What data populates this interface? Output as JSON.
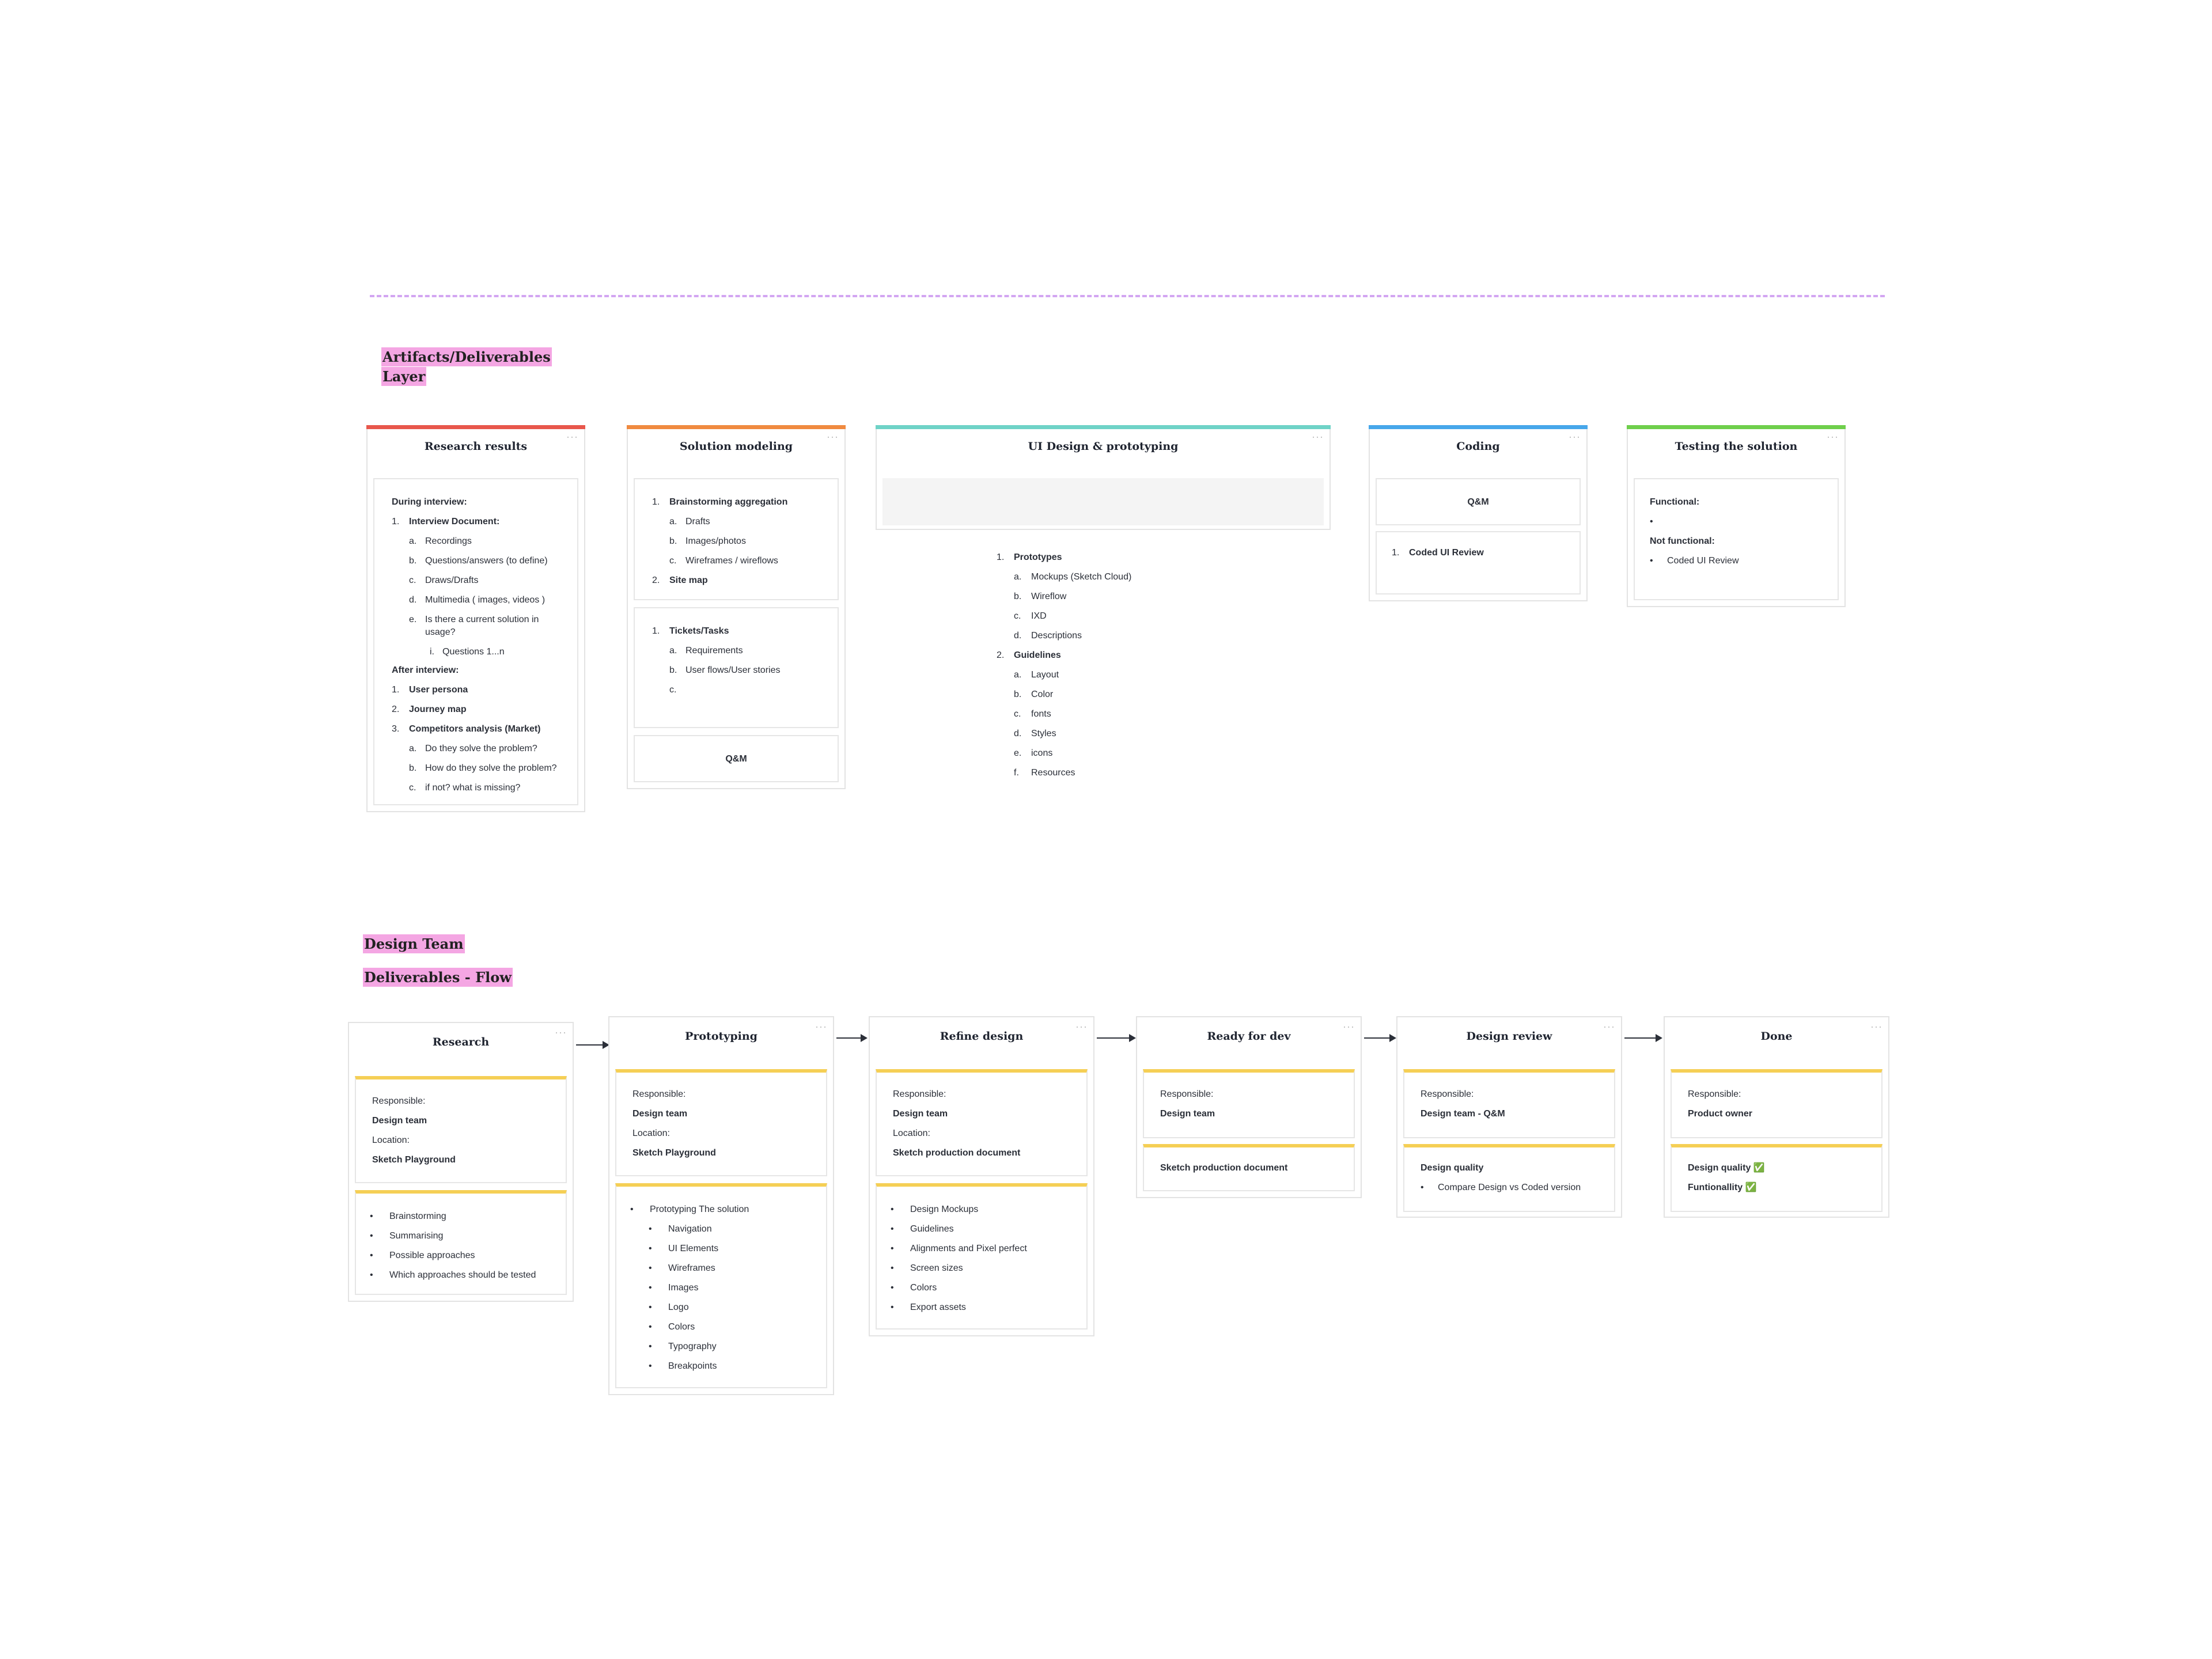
{
  "sections": {
    "artifacts_title_1": "Artifacts/Deliverables",
    "artifacts_title_2": "Layer",
    "design_team_title": "Design Team",
    "flow_title": "Deliverables - Flow"
  },
  "colors": {
    "research": "#e8574c",
    "solution": "#f08a40",
    "ui_design": "#6fd3c7",
    "coding": "#47a7ea",
    "testing": "#6fcf4c",
    "flow_accent": "#f5cf55",
    "highlight": "#f4a6e3",
    "divider": "#d3a6f2"
  },
  "card_menu": "···",
  "artifacts": {
    "research": {
      "title": "Research results",
      "during": "During interview:",
      "n1": "1.",
      "interview_doc": "Interview Document:",
      "a": "a.",
      "recordings": "Recordings",
      "b": "b.",
      "questions": "Questions/answers (to define)",
      "c": "c.",
      "draws": "Draws/Drafts",
      "d": "d.",
      "multimedia": "Multimedia ( images, videos )",
      "e": "e.",
      "current_1": "Is there a current solution in",
      "current_2": "usage?",
      "i": "i.",
      "questions_n": "Questions 1...n",
      "after": "After interview:",
      "n1b": "1.",
      "persona": "User persona",
      "n2": "2.",
      "journey": "Journey map",
      "n3": "3.",
      "competitors": "Competitors analysis (Market)",
      "a2": "a.",
      "solve": "Do they solve the problem?",
      "b2": "b.",
      "how": "How do they solve the problem?",
      "c2": "c.",
      "missing": "if not? what is missing?"
    },
    "solution": {
      "title": "Solution modeling",
      "n1": "1.",
      "brainstorm": "Brainstorming aggregation",
      "a": "a.",
      "drafts": "Drafts",
      "b": "b.",
      "images": "Images/photos",
      "c": "c.",
      "wireframes": "Wireframes / wireflows",
      "n2": "2.",
      "sitemap": "Site map",
      "n1b": "1.",
      "tickets": "Tickets/Tasks",
      "a2": "a.",
      "requirements": "Requirements",
      "b2": "b.",
      "userflows": "User flows/User stories",
      "c2": "c.",
      "qm": "Q&M"
    },
    "ui": {
      "title": "UI Design  & prototyping",
      "n1": "1.",
      "prototypes": "Prototypes",
      "a": "a.",
      "mockups": "Mockups (Sketch Cloud)",
      "b": "b.",
      "wireflow": "Wireflow",
      "c": "c.",
      "ixd": "IXD",
      "d": "d.",
      "descriptions": "Descriptions",
      "n2": "2.",
      "guidelines": "Guidelines",
      "a2": "a.",
      "layout": "Layout",
      "b2": "b.",
      "color": "Color",
      "c2": "c.",
      "fonts": "fonts",
      "d2": "d.",
      "styles": "Styles",
      "e2": "e.",
      "icons": "icons",
      "f2": "f.",
      "resources": "Resources"
    },
    "coding": {
      "title": "Coding",
      "qm": "Q&M",
      "n1": "1.",
      "review": "Coded UI Review"
    },
    "testing": {
      "title": "Testing the solution",
      "functional": "Functional:",
      "bullet": "•",
      "not_functional": "Not functional:",
      "review": "Coded UI Review"
    }
  },
  "flow": {
    "bullet": "•",
    "research": {
      "title": "Research",
      "responsible": "Responsible:",
      "team": "Design team",
      "location": "Location:",
      "place": "Sketch Playground",
      "items": [
        "Brainstorming",
        "Summarising",
        "Possible approaches",
        "Which approaches should be tested"
      ]
    },
    "prototyping": {
      "title": "Prototyping",
      "responsible": "Responsible:",
      "team": "Design team",
      "location": "Location:",
      "place": "Sketch Playground",
      "lead": "Prototyping The solution",
      "items": [
        "Navigation",
        "UI Elements",
        "Wireframes",
        "Images",
        "Logo",
        "Colors",
        "Typography",
        "Breakpoints"
      ]
    },
    "refine": {
      "title": "Refine design",
      "responsible": "Responsible:",
      "team": "Design team",
      "location": "Location:",
      "place": "Sketch production document",
      "items": [
        "Design Mockups",
        "Guidelines",
        "Alignments and Pixel perfect",
        "Screen sizes",
        "Colors",
        "Export assets"
      ]
    },
    "ready": {
      "title": "Ready for dev",
      "responsible": "Responsible:",
      "team": "Design team",
      "doc": "Sketch production document"
    },
    "review": {
      "title": "Design review",
      "responsible": "Responsible:",
      "team": "Design team -  Q&M",
      "quality": "Design quality",
      "compare": "Compare Design vs Coded version"
    },
    "done": {
      "title": "Done",
      "responsible": "Responsible:",
      "team": "Product owner",
      "quality": "Design quality ✅",
      "func": "Funtionallity ✅"
    }
  }
}
